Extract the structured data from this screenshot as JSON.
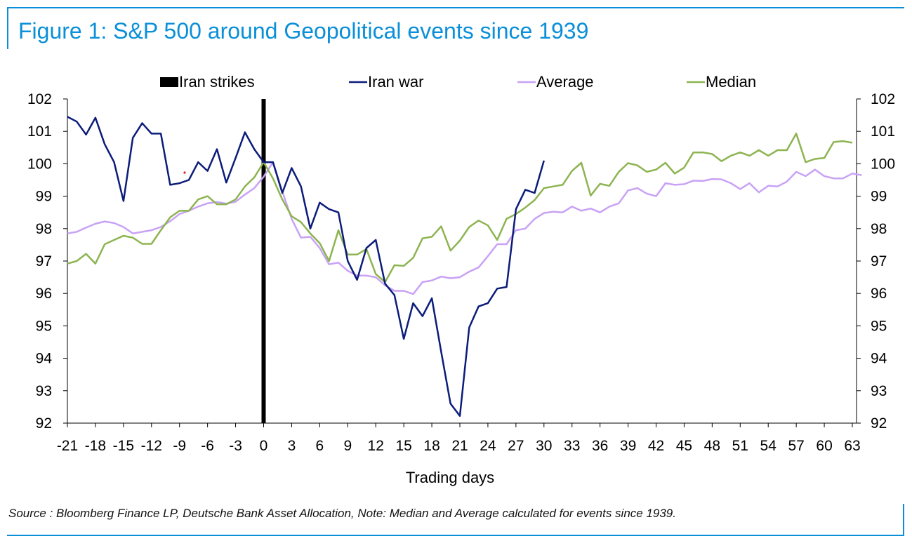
{
  "title": "Figure 1: S&P 500 around Geopolitical events since 1939",
  "source": "Source : Bloomberg Finance LP, Deutsche Bank Asset Allocation, Note: Median and Average calculated for events since 1939.",
  "colors": {
    "title": "#0a8fd8",
    "frame": "#0a8fd8",
    "iran_strikes": "#000000",
    "iran_war": "#0b1c7a",
    "average": "#c9a2f5",
    "median": "#8db451"
  },
  "chart_data": {
    "type": "line",
    "title": "Figure 1: S&P 500 around Geopolitical events since 1939",
    "xlabel": "Trading days",
    "ylabel": "",
    "xlim": [
      -21,
      63
    ],
    "ylim": [
      92,
      102
    ],
    "legend_position": "top",
    "grid": false,
    "x_ticks": [
      -21,
      -18,
      -15,
      -12,
      -9,
      -6,
      -3,
      0,
      3,
      6,
      9,
      12,
      15,
      18,
      21,
      24,
      27,
      30,
      33,
      36,
      39,
      42,
      45,
      48,
      51,
      54,
      57,
      60,
      63
    ],
    "y_ticks": [
      92,
      93,
      94,
      95,
      96,
      97,
      98,
      99,
      100,
      101,
      102
    ],
    "series": [
      {
        "name": "Iran strikes",
        "kind": "event-bar",
        "x": 0
      },
      {
        "name": "Iran war",
        "x_start": -21,
        "values": [
          101.45,
          101.3,
          100.9,
          101.42,
          100.6,
          100.05,
          98.85,
          100.8,
          101.25,
          100.93,
          100.93,
          99.35,
          99.4,
          99.5,
          100.05,
          99.78,
          100.45,
          99.42,
          100.18,
          100.97,
          100.45,
          100.05,
          100.05,
          99.1,
          99.87,
          99.3,
          98.0,
          98.8,
          98.6,
          98.5,
          97.0,
          96.42,
          97.4,
          97.65,
          96.3,
          95.95,
          94.6,
          95.7,
          95.3,
          95.85,
          94.2,
          92.6,
          92.22,
          94.95,
          95.6,
          95.7,
          96.15,
          96.2,
          98.6,
          99.2,
          99.1,
          100.1
        ]
      },
      {
        "name": "Average",
        "x_start": -21,
        "values": [
          97.85,
          97.9,
          98.03,
          98.15,
          98.22,
          98.17,
          98.05,
          97.85,
          97.9,
          97.95,
          98.05,
          98.23,
          98.45,
          98.55,
          98.68,
          98.78,
          98.82,
          98.77,
          98.83,
          99.05,
          99.25,
          99.6,
          100.05,
          99.15,
          98.3,
          97.72,
          97.75,
          97.4,
          96.9,
          96.95,
          96.7,
          96.55,
          96.55,
          96.5,
          96.25,
          96.08,
          96.08,
          95.98,
          96.35,
          96.4,
          96.52,
          96.47,
          96.5,
          96.67,
          96.8,
          97.15,
          97.52,
          97.52,
          97.95,
          98.0,
          98.3,
          98.48,
          98.52,
          98.5,
          98.68,
          98.55,
          98.62,
          98.5,
          98.68,
          98.78,
          99.18,
          99.25,
          99.08,
          99.0,
          99.4,
          99.35,
          99.37,
          99.48,
          99.47,
          99.53,
          99.52,
          99.4,
          99.22,
          99.4,
          99.12,
          99.32,
          99.3,
          99.45,
          99.75,
          99.62,
          99.82,
          99.62,
          99.55,
          99.55,
          99.7,
          99.65
        ]
      },
      {
        "name": "Median",
        "x_start": -21,
        "values": [
          96.92,
          97.0,
          97.22,
          96.92,
          97.52,
          97.65,
          97.78,
          97.72,
          97.53,
          97.53,
          97.95,
          98.35,
          98.55,
          98.55,
          98.9,
          99.0,
          98.75,
          98.75,
          98.9,
          99.3,
          99.58,
          100.05,
          99.55,
          98.9,
          98.38,
          98.2,
          97.85,
          97.55,
          97.0,
          97.95,
          97.2,
          97.2,
          97.37,
          96.6,
          96.35,
          96.87,
          96.85,
          97.1,
          97.7,
          97.75,
          98.07,
          97.32,
          97.63,
          98.05,
          98.25,
          98.1,
          97.65,
          98.3,
          98.45,
          98.65,
          98.88,
          99.25,
          99.3,
          99.35,
          99.78,
          100.03,
          99.02,
          99.38,
          99.32,
          99.75,
          100.02,
          99.95,
          99.75,
          99.82,
          100.03,
          99.7,
          99.88,
          100.35,
          100.35,
          100.3,
          100.08,
          100.25,
          100.35,
          100.25,
          100.42,
          100.25,
          100.42,
          100.42,
          100.93,
          100.05,
          100.15,
          100.18,
          100.67,
          100.7,
          100.65
        ]
      }
    ]
  }
}
